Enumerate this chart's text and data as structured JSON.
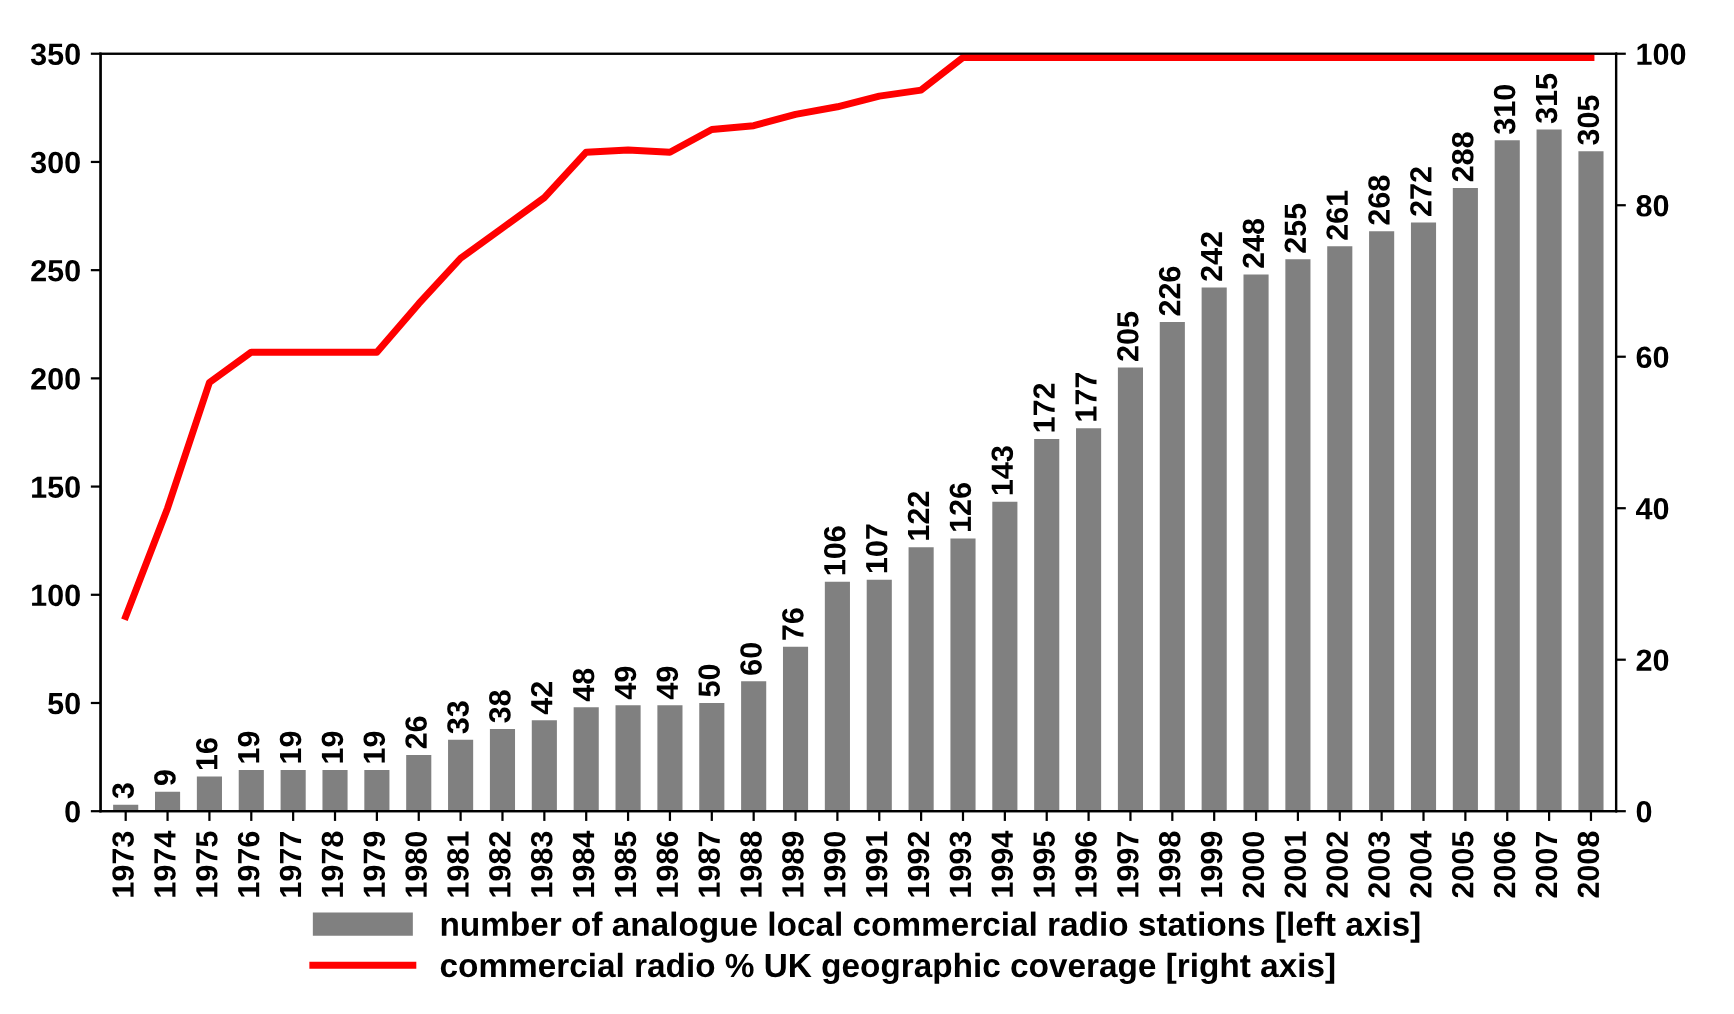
{
  "chart_data": {
    "type": "bar",
    "categories": [
      "1973",
      "1974",
      "1975",
      "1976",
      "1977",
      "1978",
      "1979",
      "1980",
      "1981",
      "1982",
      "1983",
      "1984",
      "1985",
      "1986",
      "1987",
      "1988",
      "1989",
      "1990",
      "1991",
      "1992",
      "1993",
      "1994",
      "1995",
      "1996",
      "1997",
      "1998",
      "1999",
      "2000",
      "2001",
      "2002",
      "2003",
      "2004",
      "2005",
      "2006",
      "2007",
      "2008"
    ],
    "series": [
      {
        "name": "number of analogue local commercial radio stations [left axis]",
        "color": "#808080",
        "values": [
          3,
          9,
          16,
          19,
          19,
          19,
          19,
          26,
          33,
          38,
          42,
          48,
          49,
          49,
          50,
          60,
          76,
          106,
          107,
          122,
          126,
          143,
          172,
          177,
          205,
          226,
          242,
          248,
          255,
          261,
          268,
          272,
          288,
          310,
          315,
          305
        ],
        "data_labels": true
      },
      {
        "name": "commercial radio % UK geographic coverage [right axis]",
        "type": "line",
        "axis": "y2",
        "color": "#ff0000",
        "values": [
          25.7,
          40,
          56.6,
          60.6,
          60.6,
          60.6,
          60.6,
          67,
          73,
          77,
          81,
          87,
          87.3,
          87,
          90,
          90.5,
          92,
          93,
          94.4,
          95.2,
          99.5,
          99.5,
          99.5,
          99.5,
          99.5,
          99.5,
          99.5,
          99.5,
          99.5,
          99.5,
          99.5,
          99.5,
          99.5,
          99.5,
          99.5,
          99.5
        ]
      }
    ],
    "ylim": [
      0,
      350
    ],
    "yticks": [
      0,
      50,
      100,
      150,
      200,
      250,
      300,
      350
    ],
    "y2lim": [
      0,
      100
    ],
    "y2ticks": [
      0,
      20,
      40,
      60,
      80,
      100
    ],
    "grid": false,
    "legend": "bottom",
    "marker": "none",
    "line_style": "solid"
  }
}
